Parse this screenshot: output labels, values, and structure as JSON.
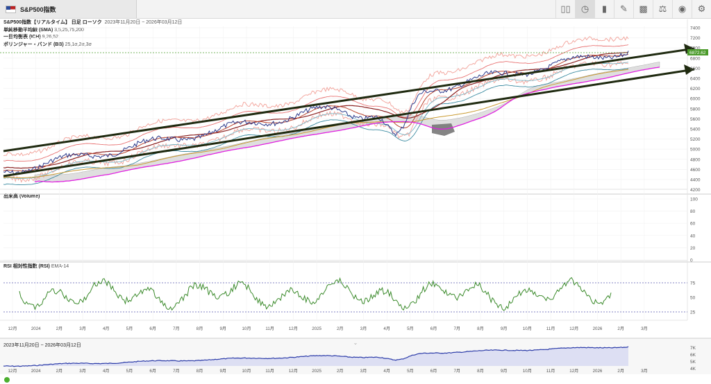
{
  "tab": {
    "title": "S&P500指数"
  },
  "toolbar": {
    "icons": [
      "bars-icon",
      "clock-icon",
      "candlestick-icon",
      "draw-icon",
      "analysis-icon",
      "compare-icon",
      "eye-icon",
      "gear-icon"
    ]
  },
  "legend": {
    "title": "S&P500指数【リアルタイム】 日足 ローソク",
    "range": "2023年11月20日 ~ 2026年03月12日",
    "sma_label": "単純移動平均線 (SMA)",
    "sma_params": "3,5,25,75,200",
    "ich_label": "一目均衡表 (ICH)",
    "ich_params": "9,26,52",
    "bb_label": "ボリンジャー・バンド (BB)",
    "bb_params": "25,1σ,2σ,3σ"
  },
  "price_axis": {
    "ticks": [
      "7400",
      "7200",
      "7000",
      "6800",
      "6600",
      "6400",
      "6200",
      "6000",
      "5800",
      "5600",
      "5400",
      "5200",
      "5000",
      "4800",
      "4600",
      "4400",
      "4200"
    ],
    "current": "6872.62"
  },
  "volume": {
    "label": "出来高 (Volume)",
    "ticks": [
      "100",
      "80",
      "60",
      "40",
      "20",
      "0"
    ]
  },
  "rsi": {
    "label": "RSI 相対性指数 (RSI)",
    "params": "EMA-14",
    "ticks": [
      "75",
      "50",
      "25"
    ]
  },
  "time_axis": {
    "labels": [
      "12月",
      "2024",
      "2月",
      "3月",
      "4月",
      "5月",
      "6月",
      "7月",
      "8月",
      "9月",
      "10月",
      "11月",
      "12月",
      "2025",
      "2月",
      "3月",
      "4月",
      "5月",
      "6月",
      "7月",
      "8月",
      "9月",
      "10月",
      "11月",
      "12月",
      "2026",
      "2月",
      "3月"
    ]
  },
  "navigator": {
    "range": "2023年11月20日 ~ 2026年03月12日",
    "ticks": [
      "7K",
      "6K",
      "5K",
      "4K"
    ]
  },
  "colors": {
    "price": "#2c3a8c",
    "rsi": "#3a8a2a",
    "trendline": "#1f2a10",
    "cloud": "#888888",
    "ich_lead": "#e020e0"
  }
}
